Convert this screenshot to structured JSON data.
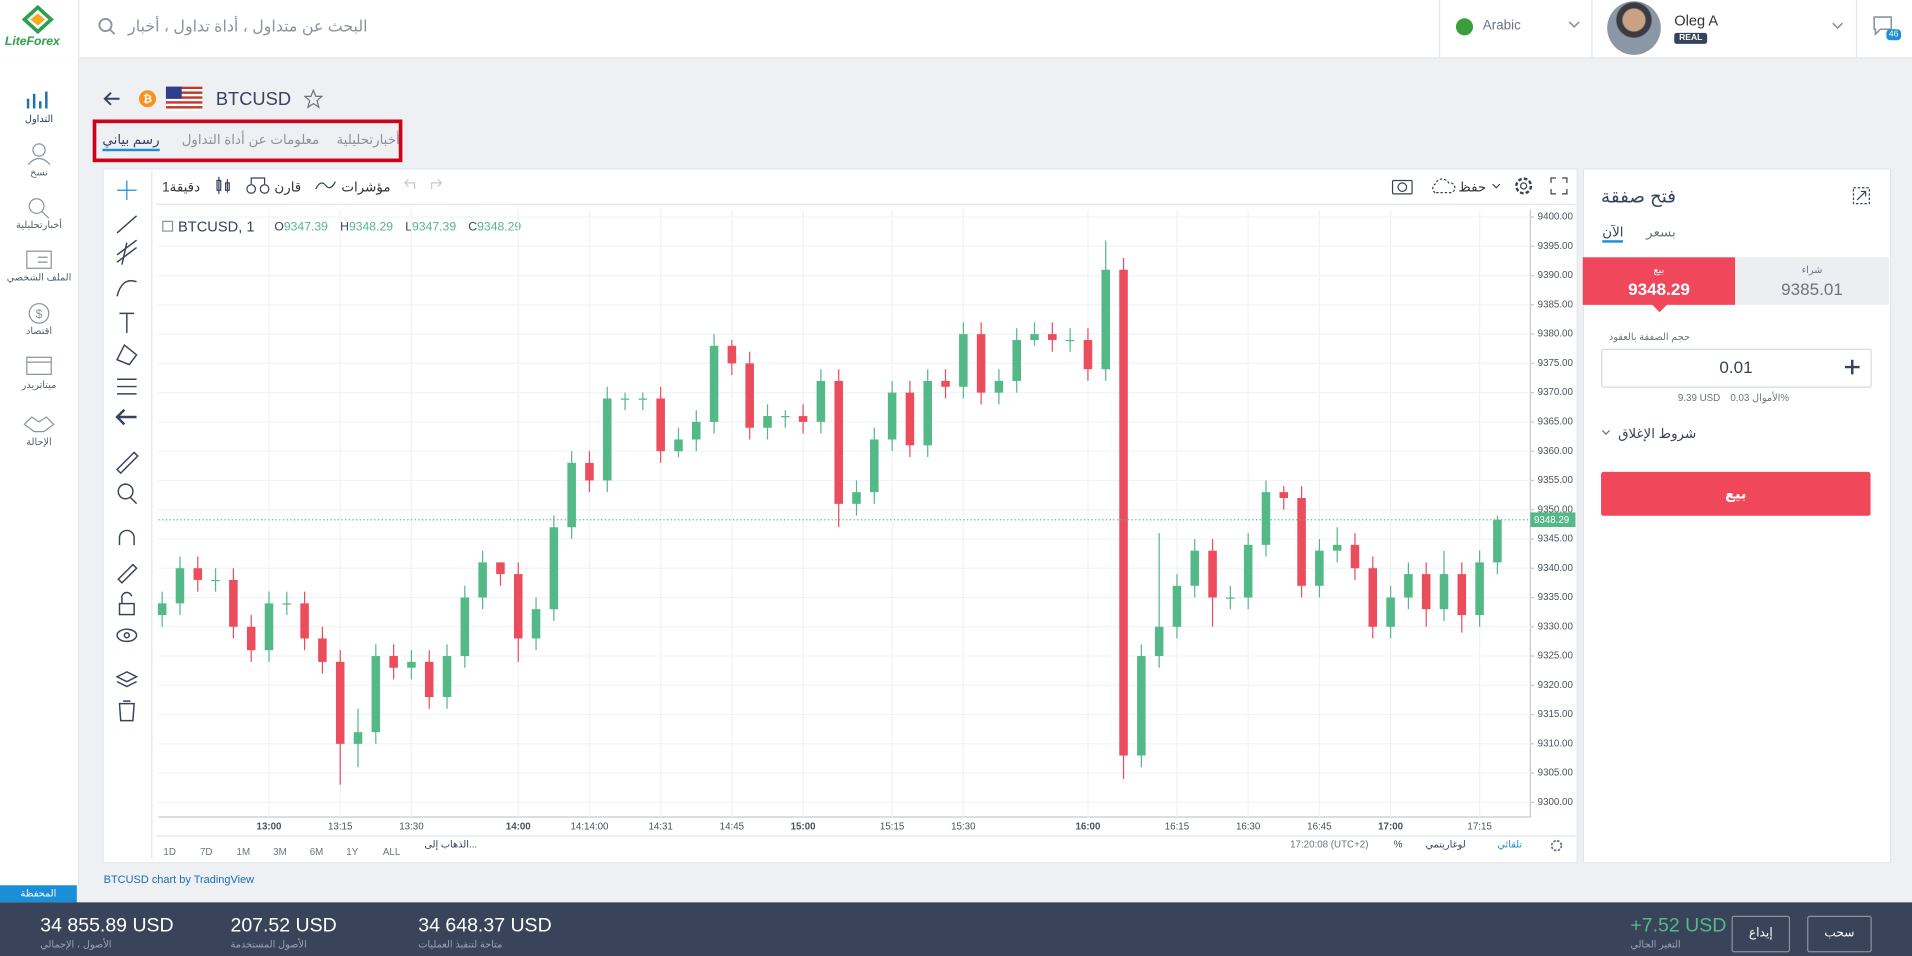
{
  "header": {
    "logo": "LiteForex",
    "search_placeholder": "البحث عن متداول ، أداة تداول ، أخبار",
    "language": "Arabic",
    "user_name": "Oleg A",
    "account_type": "REAL",
    "notifications": 46
  },
  "sidebar": [
    "التداول",
    "نسخ",
    "أخبارتحليلية",
    "الملف الشخصي",
    "اقتصاد",
    "ميتاتريدر",
    "الإحالة"
  ],
  "instrument": {
    "symbol": "BTCUSD",
    "tabs": [
      "أخبارتحليلية",
      "معلومات عن أداة التداول",
      "رسم بياني"
    ]
  },
  "toolbar": {
    "interval": "دقيقة1",
    "compare": "قارن",
    "indicators": "مؤشرات",
    "save": "حفظ"
  },
  "chart_data": {
    "type": "candlestick",
    "legend": "BTCUSD, 1",
    "ohlc_header": [
      {
        "label": "O",
        "value": 9347.39
      },
      {
        "label": "H",
        "value": 9348.29
      },
      {
        "label": "L",
        "value": 9347.39
      },
      {
        "label": "C",
        "value": 9348.29
      }
    ],
    "x": [
      null,
      null,
      null,
      null,
      null,
      null,
      "13:00",
      null,
      null,
      null,
      "13:15",
      null,
      null,
      null,
      "13:30",
      null,
      null,
      null,
      null,
      null,
      "14:00",
      null,
      null,
      null,
      "14:14:00",
      null,
      null,
      null,
      "14:31",
      null,
      null,
      null,
      "14:45",
      null,
      null,
      null,
      "15:00",
      null,
      null,
      null,
      null,
      "15:15",
      null,
      null,
      null,
      "15:30",
      null,
      null,
      null,
      null,
      null,
      null,
      "16:00",
      null,
      null,
      null,
      null,
      "16:15",
      null,
      null,
      null,
      "16:30",
      null,
      null,
      null,
      "16:45",
      null,
      null,
      null,
      "17:00",
      null,
      null,
      null,
      null,
      "17:15",
      null
    ],
    "open": [
      9332,
      9334,
      9340,
      9338,
      9338,
      9330,
      9326,
      9334,
      9334,
      9328,
      9324,
      9310,
      9312,
      9325,
      9323,
      9324,
      9318,
      9325,
      9335,
      9341,
      9339,
      9328,
      9333,
      9347,
      9358,
      9355,
      9369,
      9369,
      9369,
      9360,
      9362,
      9365,
      9378,
      9375,
      9364,
      9366,
      9366,
      9365,
      9372,
      9351,
      9353,
      9362,
      9370,
      9361,
      9372,
      9371,
      9380,
      9370,
      9372,
      9379,
      9380,
      9379,
      9379,
      9374,
      9391,
      9308,
      9325,
      9330,
      9337,
      9343,
      9335,
      9335,
      9344,
      9353,
      9352,
      9337,
      9343,
      9344,
      9340,
      9330,
      9335,
      9339,
      9333,
      9339,
      9332,
      9341
    ],
    "high": [
      9336,
      9342,
      9342,
      9340,
      9340,
      9332,
      9336,
      9336,
      9336,
      9330,
      9326,
      9316,
      9327,
      9327,
      9326,
      9326,
      9327,
      9337,
      9343,
      9341,
      9341,
      9335,
      9349,
      9360,
      9360,
      9371,
      9370,
      9370,
      9371,
      9364,
      9367,
      9380,
      9379,
      9377,
      9368,
      9367,
      9368,
      9374,
      9374,
      9355,
      9364,
      9372,
      9372,
      9374,
      9374,
      9382,
      9382,
      9374,
      9381,
      9382,
      9382,
      9381,
      9381,
      9396,
      9393,
      9327,
      9346,
      9339,
      9345,
      9345,
      9337,
      9346,
      9355,
      9354,
      9354,
      9345,
      9347,
      9346,
      9342,
      9337,
      9341,
      9341,
      9343,
      9341,
      9343,
      9349
    ],
    "low": [
      9330,
      9332,
      9336,
      9336,
      9328,
      9324,
      9324,
      9332,
      9326,
      9322,
      9303,
      9306,
      9310,
      9321,
      9321,
      9316,
      9316,
      9323,
      9333,
      9337,
      9324,
      9326,
      9331,
      9345,
      9353,
      9353,
      9367,
      9367,
      9358,
      9359,
      9360,
      9363,
      9373,
      9362,
      9362,
      9364,
      9363,
      9363,
      9347,
      9349,
      9351,
      9360,
      9359,
      9359,
      9369,
      9369,
      9368,
      9368,
      9370,
      9378,
      9377,
      9377,
      9372,
      9372,
      9304,
      9306,
      9323,
      9328,
      9335,
      9330,
      9333,
      9333,
      9342,
      9350,
      9335,
      9335,
      9341,
      9338,
      9328,
      9328,
      9333,
      9330,
      9331,
      9329,
      9330,
      9339
    ],
    "close": [
      9334,
      9340,
      9338,
      9338,
      9330,
      9326,
      9334,
      9334,
      9328,
      9324,
      9310,
      9312,
      9325,
      9323,
      9324,
      9318,
      9325,
      9335,
      9341,
      9339,
      9328,
      9333,
      9347,
      9358,
      9355,
      9369,
      9369,
      9369,
      9360,
      9362,
      9365,
      9378,
      9375,
      9364,
      9366,
      9366,
      9365,
      9372,
      9351,
      9353,
      9362,
      9370,
      9361,
      9372,
      9371,
      9380,
      9370,
      9372,
      9379,
      9380,
      9379,
      9379,
      9374,
      9391,
      9308,
      9325,
      9330,
      9337,
      9343,
      9335,
      9335,
      9344,
      9353,
      9352,
      9337,
      9343,
      9344,
      9340,
      9330,
      9335,
      9339,
      9333,
      9339,
      9332,
      9341,
      9348.29
    ],
    "ylim": [
      9297.5,
      9401.25
    ],
    "yticks": [
      {
        "value": 9300,
        "label": "9300.00"
      },
      {
        "value": 9305,
        "label": "9305.00"
      },
      {
        "value": 9310,
        "label": "9310.00"
      },
      {
        "value": 9315,
        "label": "9315.00"
      },
      {
        "value": 9320,
        "label": "9320.00"
      },
      {
        "value": 9325,
        "label": "9325.00"
      },
      {
        "value": 9330,
        "label": "9330.00"
      },
      {
        "value": 9335,
        "label": "9335.00"
      },
      {
        "value": 9340,
        "label": "9340.00"
      },
      {
        "value": 9345,
        "label": "9345.00"
      },
      {
        "value": 9350,
        "label": "9350.00"
      },
      {
        "value": 9355,
        "label": "9355.00"
      },
      {
        "value": 9360,
        "label": "9360.00"
      },
      {
        "value": 9365,
        "label": "9365.00"
      },
      {
        "value": 9370,
        "label": "9370.00"
      },
      {
        "value": 9375,
        "label": "9375.00"
      },
      {
        "value": 9380,
        "label": "9380.00"
      },
      {
        "value": 9385,
        "label": "9385.00"
      },
      {
        "value": 9390,
        "label": "9390.00"
      },
      {
        "value": 9395,
        "label": "9395.00"
      },
      {
        "value": 9400,
        "label": "9400.00"
      }
    ],
    "last_price": 9348.29,
    "up_color": "#53b987",
    "down_color": "#eb4d5c",
    "grid": true,
    "log_scale": false,
    "range_buttons": [
      "1D",
      "7D",
      "1M",
      "3M",
      "6M",
      "1Y",
      "ALL"
    ],
    "goto": "الذهاب إلى...",
    "clock": "17:20:08 (UTC+2)",
    "percent": "%",
    "log_label": "لوغاريتمي",
    "auto_label": "تلقائي",
    "credit": "BTCUSD chart by TradingView"
  },
  "order": {
    "title": "فتح صفقة",
    "tabs": [
      "الآن",
      "بسعر"
    ],
    "sell_label": "بيع",
    "sell_price": 9348.29,
    "buy_label": "شراء",
    "buy_price": 9385.01,
    "volume_label": "حجم الصفقة بالعقود",
    "volume": 0.01,
    "margin": "9.39 USD",
    "funds": "الأموال 0.03%",
    "close_conditions": "شروط الإغلاق",
    "submit": "بيع"
  },
  "footer": {
    "portfolio": "المحفظة",
    "stats": [
      {
        "value": "34 855.89 USD",
        "label": "الأصول ، الإجمالي"
      },
      {
        "value": "207.52 USD",
        "label": "الأصول المستخدمة"
      },
      {
        "value": "34 648.37 USD",
        "label": "متاحة لتنفيذ العمليات"
      }
    ],
    "change": {
      "value": "+7.52 USD",
      "label": "التغير الحالي"
    },
    "deposit": "إيداع",
    "withdraw": "سحب"
  }
}
